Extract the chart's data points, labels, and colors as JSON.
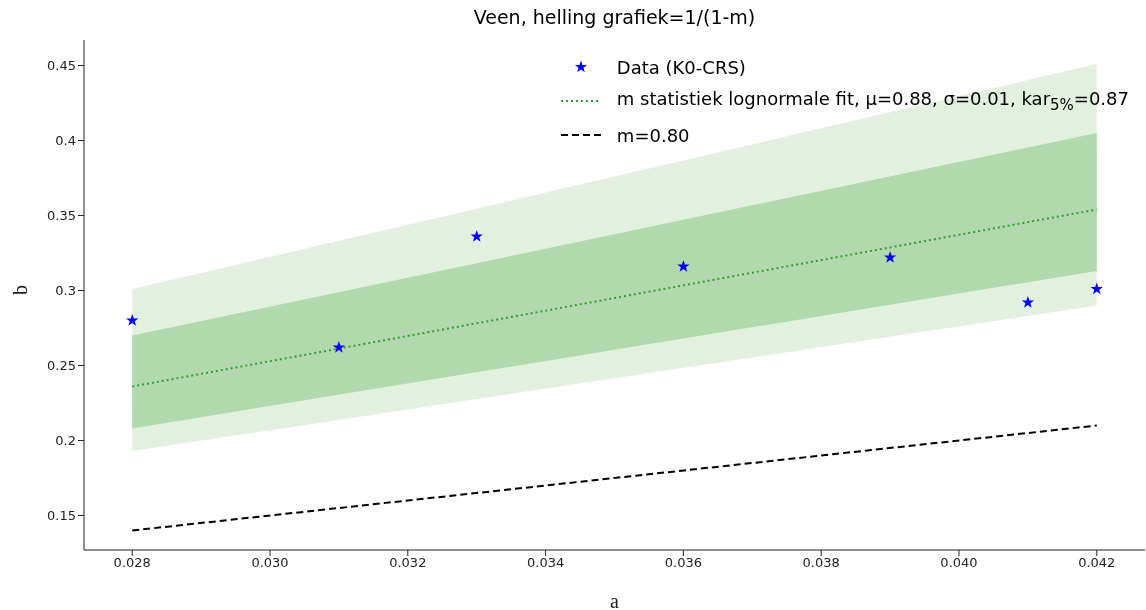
{
  "chart_data": {
    "type": "scatter",
    "title": "Veen, helling grafiek=1/(1-m)",
    "xlabel": "a",
    "ylabel": "b",
    "xlim": [
      0.0273,
      0.0427
    ],
    "ylim": [
      0.127,
      0.467
    ],
    "xticks": [
      {
        "value": 0.028,
        "label": "0.028"
      },
      {
        "value": 0.03,
        "label": "0.030"
      },
      {
        "value": 0.032,
        "label": "0.032"
      },
      {
        "value": 0.034,
        "label": "0.034"
      },
      {
        "value": 0.036,
        "label": "0.036"
      },
      {
        "value": 0.038,
        "label": "0.038"
      },
      {
        "value": 0.04,
        "label": "0.040"
      },
      {
        "value": 0.042,
        "label": "0.042"
      }
    ],
    "yticks": [
      0.15,
      0.2,
      0.25,
      0.3,
      0.35,
      0.4,
      0.45
    ],
    "grid": false,
    "legend": "top right",
    "series": [
      {
        "name": "Data (K0-CRS)",
        "color": "#0000ff",
        "marker": "star",
        "x": [
          0.028,
          0.031,
          0.033,
          0.036,
          0.039,
          0.041,
          0.042
        ],
        "values": [
          0.28,
          0.262,
          0.336,
          0.316,
          0.322,
          0.292,
          0.301
        ]
      },
      {
        "type": "line",
        "name": "m statistiek lognormale fit, μ=0.88, σ=0.01, kar$_{5%}$=0.87",
        "color": "#2ca02c",
        "line_style": "dotted",
        "marker": "none",
        "x": [
          0.028,
          0.042
        ],
        "values": [
          0.236,
          0.354
        ]
      },
      {
        "type": "line",
        "name": "m=0.80",
        "color": "#000000",
        "line_style": "dashed",
        "marker": "none",
        "x": [
          0.028,
          0.042
        ],
        "values": [
          0.14,
          0.21
        ]
      },
      {
        "type": "line",
        "color": "#e3f0e0",
        "x": [
          0.028,
          0.042
        ],
        "values": [
          null,
          null
        ],
        "lower": [
          0.193,
          0.29
        ],
        "upper": [
          0.301,
          0.451
        ]
      },
      {
        "type": "line",
        "color": "#b2d9ad",
        "x": [
          0.028,
          0.042
        ],
        "values": [
          null,
          null
        ],
        "lower": [
          0.208,
          0.313
        ],
        "upper": [
          0.27,
          0.405
        ]
      }
    ]
  }
}
